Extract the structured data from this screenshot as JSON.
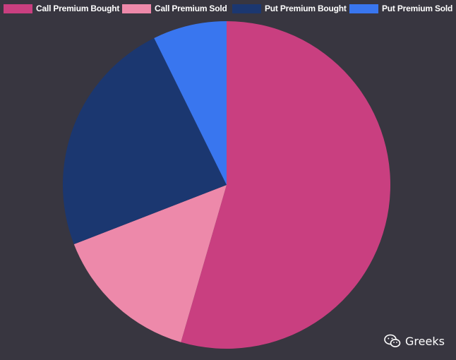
{
  "chart_data": {
    "type": "pie",
    "title": "",
    "legend_position": "top",
    "slices": [
      {
        "label": "Call Premium Bought",
        "value": 54.5,
        "color": "#c93f80"
      },
      {
        "label": "Call Premium Sold",
        "value": 14.6,
        "color": "#ed89aa"
      },
      {
        "label": "Put Premium Bought",
        "value": 23.6,
        "color": "#1b3770"
      },
      {
        "label": "Put Premium Sold",
        "value": 7.3,
        "color": "#3976ef"
      }
    ]
  },
  "watermark": {
    "text": "Greeks",
    "icon": "wechat-icon"
  }
}
